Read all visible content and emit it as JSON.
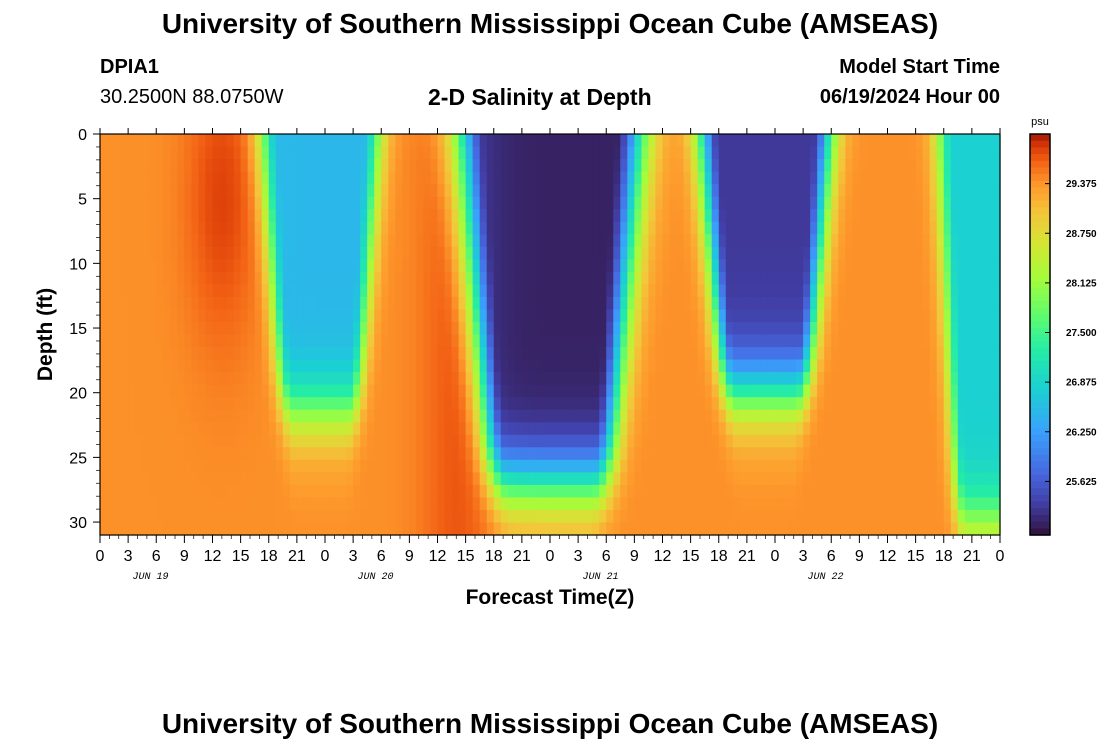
{
  "header": {
    "title": "University of Southern Mississippi Ocean Cube (AMSEAS)",
    "station_id": "DPIA1",
    "station_coords": "30.2500N  88.0750W",
    "chart_title": "2-D Salinity at Depth",
    "model_start_label": "Model Start Time",
    "model_start_value": "06/19/2024 Hour 00"
  },
  "footer": {
    "title": "University of Southern Mississippi Ocean Cube (AMSEAS)"
  },
  "chart_data": {
    "type": "heatmap",
    "title": "2-D Salinity at Depth",
    "xlabel": "Forecast Time(Z)",
    "ylabel": "Depth (ft)",
    "x_ticks": [
      "0",
      "3",
      "6",
      "9",
      "12",
      "15",
      "18",
      "21",
      "0",
      "3",
      "6",
      "9",
      "12",
      "15",
      "18",
      "21",
      "0",
      "3",
      "6",
      "9",
      "12",
      "15",
      "18",
      "21",
      "0",
      "3",
      "6",
      "9",
      "12",
      "15",
      "18",
      "21",
      "0"
    ],
    "x_hours": [
      0,
      3,
      6,
      9,
      12,
      15,
      18,
      21,
      24,
      27,
      30,
      33,
      36,
      39,
      42,
      45,
      48,
      51,
      54,
      57,
      60,
      63,
      66,
      69,
      72,
      75,
      78,
      81,
      84,
      87,
      90,
      93,
      96
    ],
    "date_labels": [
      {
        "label": "JUN 19",
        "hour": 4
      },
      {
        "label": "JUN 20",
        "hour": 28
      },
      {
        "label": "JUN 21",
        "hour": 52
      },
      {
        "label": "JUN 22",
        "hour": 76
      }
    ],
    "y_ticks": [
      "0",
      "5",
      "10",
      "15",
      "20",
      "25",
      "30"
    ],
    "y_values": [
      0,
      5,
      10,
      15,
      20,
      25,
      30
    ],
    "ylim": [
      0,
      31
    ],
    "xlim": [
      0,
      96
    ],
    "colorbar": {
      "unit": "psu",
      "ticks": [
        "29.375",
        "28.750",
        "28.125",
        "27.500",
        "26.875",
        "26.250",
        "25.625"
      ],
      "tick_values": [
        29.375,
        28.75,
        28.125,
        27.5,
        26.875,
        26.25,
        25.625
      ],
      "range": [
        24.95,
        30.0
      ]
    },
    "fresh_lenses": [
      {
        "center_hour": 23.5,
        "half_width_hours": 4.5,
        "depth_ft": 21.5,
        "min_psu": 26.5
      },
      {
        "center_hour": 48.0,
        "half_width_hours": 7.0,
        "depth_ft": 27.0,
        "min_psu": 25.1
      },
      {
        "center_hour": 71.0,
        "half_width_hours": 5.0,
        "depth_ft": 20.0,
        "min_psu": 25.3
      },
      {
        "center_hour": 95.0,
        "half_width_hours": 4.0,
        "depth_ft": 30.0,
        "min_psu": 26.8
      }
    ],
    "base_salinity_psu": 29.4,
    "max_salinity_psu": 29.9
  }
}
